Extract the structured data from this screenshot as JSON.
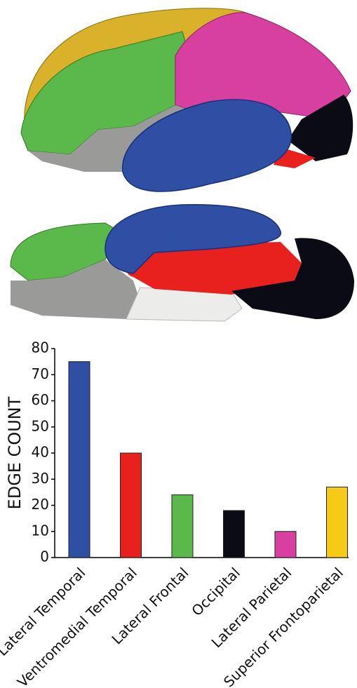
{
  "chart_data": {
    "type": "bar",
    "y_label": "EDGE COUNT",
    "categories": [
      "Lateral Temporal",
      "Ventromedial Temporal",
      "Lateral Frontal",
      "Occipital",
      "Lateral Parietal",
      "Superior Frontoparietal"
    ],
    "values": [
      75,
      40,
      24,
      18,
      10,
      27
    ],
    "colors": [
      "#2f4fa5",
      "#e8211f",
      "#5bb84b",
      "#0b0b16",
      "#d8409f",
      "#f6cb18"
    ],
    "ylim": [
      0,
      80
    ],
    "yticks": [
      0,
      10,
      20,
      30,
      40,
      50,
      60,
      70,
      80
    ],
    "grid": false
  }
}
